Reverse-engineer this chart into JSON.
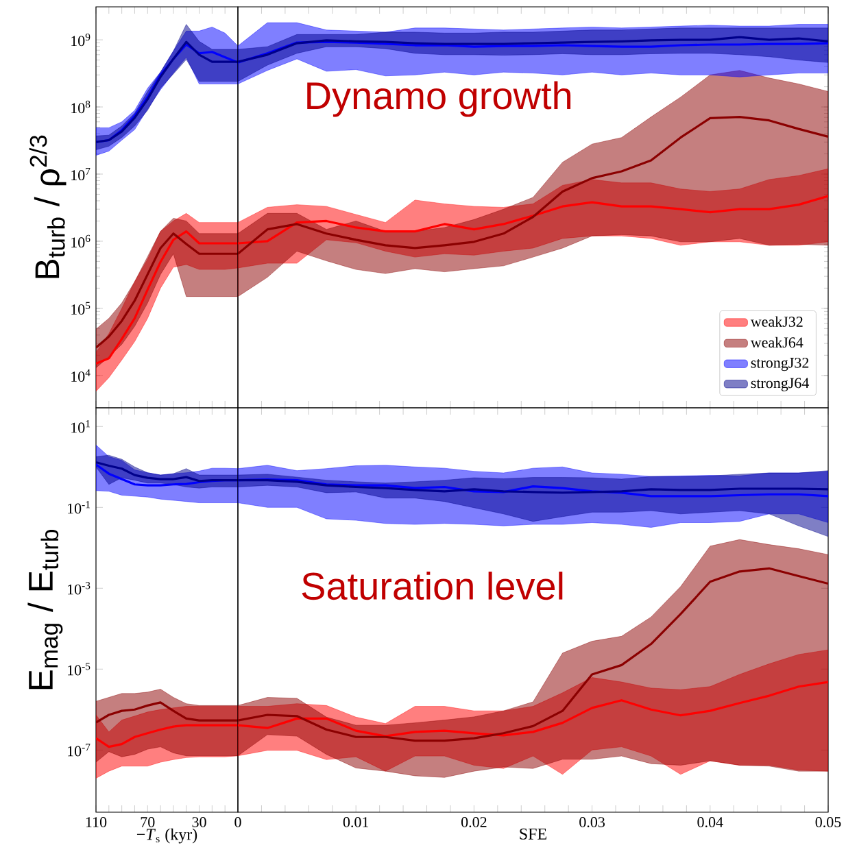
{
  "chart_data": [
    {
      "type": "line",
      "log": true,
      "tick_labels": "y",
      "ylabel": "B$_{turb}$ / ρ$^{2/3}$",
      "xlim": [
        110,
        0
      ],
      "ylim": [
        3300,
        3100000000
      ],
      "xticks": [
        110,
        {
          "value": 100,
          "label": null
        },
        {
          "value": 90,
          "label": null
        },
        {
          "value": 80,
          "label": null
        },
        70,
        {
          "value": 60,
          "label": null
        },
        {
          "value": 50,
          "label": null
        },
        {
          "value": 40,
          "label": null
        },
        30,
        {
          "value": 20,
          "label": null
        },
        {
          "value": 10,
          "label": null
        },
        0
      ],
      "yticks": [
        {
          "value": 10000,
          "label": "10$^{4}$"
        },
        {
          "value": 100000,
          "label": "10$^{5}$"
        },
        {
          "value": 1000000,
          "label": "10$^{6}$"
        },
        {
          "value": 10000000,
          "label": "10$^{7}$"
        },
        {
          "value": 100000000,
          "label": "10$^{8}$"
        },
        {
          "value": 1000000000,
          "label": "10$^{9}$"
        }
      ],
      "x": [
        110,
        100,
        90,
        80,
        70,
        60,
        50,
        40,
        30,
        20,
        10,
        0
      ],
      "series": [
        {
          "color": "#ff0000",
          "values": [
            15000.0,
            18000.0,
            35000.0,
            71000.0,
            190000.0,
            490000.0,
            1050000.0,
            1400000.0,
            930000.0,
            930000.0,
            930000.0,
            930000.0
          ],
          "upper": [
            22000.0,
            42000.0,
            100000.0,
            250000.0,
            540000.0,
            1400000.0,
            2000000.0,
            2600000.0,
            1900000.0,
            1900000.0,
            1900000.0,
            1900000.0
          ],
          "lower": [
            5800.0,
            9300.0,
            17000.0,
            32000.0,
            71000.0,
            200000.0,
            410000.0,
            450000.0,
            380000.0,
            380000.0,
            380000.0,
            400000.0
          ]
        },
        {
          "color": "#8b0000",
          "values": [
            26000.0,
            38000.0,
            65000.0,
            130000.0,
            320000.0,
            790000.0,
            1300000.0,
            910000.0,
            650000.0,
            650000.0,
            650000.0,
            650000.0
          ],
          "upper": [
            49000.0,
            71000.0,
            120000.0,
            250000.0,
            590000.0,
            1400000.0,
            2200000.0,
            2000000.0,
            1300000.0,
            1300000.0,
            1300000.0,
            1300000.0
          ],
          "lower": [
            13000.0,
            19000.0,
            29000.0,
            54000.0,
            120000.0,
            320000.0,
            650000.0,
            150000.0,
            150000.0,
            150000.0,
            150000.0,
            150000.0
          ]
        },
        {
          "color": "#0000ff",
          "values": [
            30000000.0,
            32000000.0,
            45000000.0,
            74000000.0,
            140000000.0,
            300000000.0,
            520000000.0,
            850000000.0,
            630000000.0,
            660000000.0,
            550000000.0,
            460000000.0
          ],
          "upper": [
            49000000.0,
            49000000.0,
            60000000.0,
            89000000.0,
            190000000.0,
            330000000.0,
            680000000.0,
            1350000000.0,
            1350000000.0,
            1550000000.0,
            1260000000.0,
            810000000.0
          ],
          "lower": [
            19000000.0,
            22000000.0,
            32000000.0,
            46000000.0,
            93000000.0,
            180000000.0,
            320000000.0,
            550000000.0,
            220000000.0,
            220000000.0,
            220000000.0,
            220000000.0
          ]
        },
        {
          "color": "#00008b",
          "values": [
            30000000.0,
            32000000.0,
            43000000.0,
            69000000.0,
            130000000.0,
            280000000.0,
            520000000.0,
            930000000.0,
            600000000.0,
            470000000.0,
            470000000.0,
            470000000.0
          ],
          "upper": [
            37000000.0,
            38000000.0,
            52000000.0,
            81000000.0,
            170000000.0,
            330000000.0,
            680000000.0,
            1700000000.0,
            950000000.0,
            720000000.0,
            720000000.0,
            720000000.0
          ],
          "lower": [
            23000000.0,
            26000000.0,
            35000000.0,
            52000000.0,
            89000000.0,
            190000000.0,
            310000000.0,
            510000000.0,
            240000000.0,
            240000000.0,
            240000000.0,
            240000000.0
          ]
        }
      ]
    },
    {
      "type": "line",
      "log": true,
      "tick_labels": false,
      "legend": "bottom right",
      "annotations": [
        "Dynamo growth"
      ],
      "xlim": [
        0,
        0.05
      ],
      "ylim": [
        3300,
        3100000000
      ],
      "xticks": [
        0,
        {
          "value": 0.002,
          "label": null
        },
        {
          "value": 0.004,
          "label": null
        },
        {
          "value": 0.006,
          "label": null
        },
        {
          "value": 0.008,
          "label": null
        },
        0.01,
        {
          "value": 0.012,
          "label": null
        },
        {
          "value": 0.014,
          "label": null
        },
        {
          "value": 0.016,
          "label": null
        },
        {
          "value": 0.018,
          "label": null
        },
        0.02,
        {
          "value": 0.022,
          "label": null
        },
        {
          "value": 0.024,
          "label": null
        },
        {
          "value": 0.026,
          "label": null
        },
        {
          "value": 0.028,
          "label": null
        },
        0.03,
        {
          "value": 0.032,
          "label": null
        },
        {
          "value": 0.034,
          "label": null
        },
        {
          "value": 0.036,
          "label": null
        },
        {
          "value": 0.038,
          "label": null
        },
        0.04,
        {
          "value": 0.042,
          "label": null
        },
        {
          "value": 0.044,
          "label": null
        },
        {
          "value": 0.046,
          "label": null
        },
        {
          "value": 0.048,
          "label": null
        },
        0.05
      ],
      "yticks": [
        {
          "value": 10000,
          "label": null
        },
        {
          "value": 100000,
          "label": null
        },
        {
          "value": 1000000,
          "label": null
        },
        {
          "value": 10000000,
          "label": null
        },
        {
          "value": 100000000,
          "label": null
        },
        {
          "value": 1000000000,
          "label": null
        }
      ],
      "x": [
        0,
        0.0025,
        0.005,
        0.0075,
        0.01,
        0.0125,
        0.015,
        0.0175,
        0.02,
        0.0225,
        0.025,
        0.0275,
        0.03,
        0.0325,
        0.035,
        0.0375,
        0.04,
        0.0425,
        0.045,
        0.0475,
        0.05
      ],
      "series": [
        {
          "name": "weakJ32",
          "color": "#ff0000",
          "values": [
            930000.0,
            1000000.0,
            1900000.0,
            2000000.0,
            1600000.0,
            1400000.0,
            1400000.0,
            1800000.0,
            1500000.0,
            1800000.0,
            2400000.0,
            3300000.0,
            3800000.0,
            3300000.0,
            3300000.0,
            3000000.0,
            2700000.0,
            3000000.0,
            3000000.0,
            3500000.0,
            4700000.0
          ],
          "upper": [
            1900000.0,
            3200000.0,
            3500000.0,
            3300000.0,
            2500000.0,
            1900000.0,
            4100000.0,
            3600000.0,
            3300000.0,
            3200000.0,
            3600000.0,
            6800000.0,
            8300000.0,
            7400000.0,
            7400000.0,
            6000000.0,
            5500000.0,
            6000000.0,
            8300000.0,
            9500000.0,
            12000000.0
          ],
          "lower": [
            400000.0,
            470000.0,
            470000.0,
            1050000.0,
            950000.0,
            710000.0,
            580000.0,
            650000.0,
            620000.0,
            710000.0,
            790000.0,
            1100000.0,
            1200000.0,
            1200000.0,
            1100000.0,
            870000.0,
            980000.0,
            980000.0,
            870000.0,
            870000.0,
            980000.0
          ]
        },
        {
          "name": "weakJ64",
          "color": "#8b0000",
          "values": [
            650000.0,
            1500000.0,
            1800000.0,
            1300000.0,
            1050000.0,
            870000.0,
            790000.0,
            870000.0,
            980000.0,
            1300000.0,
            2300000.0,
            5500000.0,
            8700000.0,
            11000000.0,
            16000000.0,
            35000000.0,
            68000000.0,
            71000000.0,
            63000000.0,
            47000000.0,
            36000000.0
          ],
          "upper": [
            1300000.0,
            2600000.0,
            2600000.0,
            1500000.0,
            2000000.0,
            1400000.0,
            1400000.0,
            1600000.0,
            2100000.0,
            3000000.0,
            4500000.0,
            15000000.0,
            28000000.0,
            35000000.0,
            71000000.0,
            140000000.0,
            300000000.0,
            350000000.0,
            270000000.0,
            220000000.0,
            170000000.0
          ],
          "lower": [
            150000.0,
            290000.0,
            710000.0,
            510000.0,
            380000.0,
            330000.0,
            390000.0,
            350000.0,
            390000.0,
            430000.0,
            580000.0,
            790000.0,
            1200000.0,
            1250000.0,
            1200000.0,
            980000.0,
            980000.0,
            1100000.0,
            870000.0,
            900000.0,
            870000.0
          ]
        },
        {
          "name": "strongJ32",
          "color": "#0000ff",
          "values": [
            460000000.0,
            630000000.0,
            910000000.0,
            930000000.0,
            910000000.0,
            870000000.0,
            830000000.0,
            830000000.0,
            790000000.0,
            810000000.0,
            810000000.0,
            830000000.0,
            810000000.0,
            790000000.0,
            790000000.0,
            830000000.0,
            850000000.0,
            850000000.0,
            870000000.0,
            870000000.0,
            890000000.0
          ],
          "upper": [
            810000000.0,
            1800000000.0,
            1800000000.0,
            1400000000.0,
            1350000000.0,
            1300000000.0,
            1500000000.0,
            1500000000.0,
            1450000000.0,
            1400000000.0,
            1450000000.0,
            1500000000.0,
            1550000000.0,
            1500000000.0,
            1550000000.0,
            1600000000.0,
            1650000000.0,
            1600000000.0,
            1600000000.0,
            1700000000.0,
            1700000000.0
          ],
          "lower": [
            220000000.0,
            350000000.0,
            520000000.0,
            340000000.0,
            360000000.0,
            290000000.0,
            300000000.0,
            330000000.0,
            300000000.0,
            330000000.0,
            320000000.0,
            300000000.0,
            330000000.0,
            300000000.0,
            320000000.0,
            300000000.0,
            300000000.0,
            280000000.0,
            300000000.0,
            320000000.0,
            320000000.0
          ]
        },
        {
          "name": "strongJ64",
          "color": "#00008b",
          "values": [
            470000000.0,
            600000000.0,
            890000000.0,
            980000000.0,
            950000000.0,
            930000000.0,
            890000000.0,
            870000000.0,
            870000000.0,
            870000000.0,
            890000000.0,
            910000000.0,
            930000000.0,
            950000000.0,
            980000000.0,
            1000000000.0,
            1000000000.0,
            1100000000.0,
            1000000000.0,
            1050000000.0,
            950000000.0
          ],
          "upper": [
            720000000.0,
            790000000.0,
            1200000000.0,
            1200000000.0,
            1200000000.0,
            1300000000.0,
            1300000000.0,
            1260000000.0,
            1260000000.0,
            1300000000.0,
            1300000000.0,
            1350000000.0,
            1400000000.0,
            1400000000.0,
            1450000000.0,
            1500000000.0,
            1500000000.0,
            1500000000.0,
            1500000000.0,
            1500000000.0,
            1500000000.0
          ],
          "lower": [
            240000000.0,
            420000000.0,
            630000000.0,
            790000000.0,
            790000000.0,
            740000000.0,
            630000000.0,
            600000000.0,
            600000000.0,
            590000000.0,
            600000000.0,
            620000000.0,
            600000000.0,
            600000000.0,
            620000000.0,
            630000000.0,
            630000000.0,
            600000000.0,
            560000000.0,
            500000000.0,
            460000000.0
          ]
        }
      ]
    },
    {
      "type": "line",
      "log": true,
      "ylabel": "E$_{mag}$ / E$_{turb}$",
      "xlabel": "−*T*$_{s}$ (kyr)",
      "xlim": [
        110,
        0
      ],
      "ylim": [
        2.9e-09,
        29
      ],
      "xticks": [
        110,
        {
          "value": 100,
          "label": null
        },
        {
          "value": 90,
          "label": null
        },
        {
          "value": 80,
          "label": null
        },
        70,
        {
          "value": 60,
          "label": null
        },
        {
          "value": 50,
          "label": null
        },
        {
          "value": 40,
          "label": null
        },
        30,
        {
          "value": 20,
          "label": null
        },
        {
          "value": 10,
          "label": null
        },
        {
          "value": 0,
          "label": null
        }
      ],
      "yticks": [
        {
          "value": 1e-07,
          "label": "10$^{-7}$"
        },
        {
          "value": 1e-05,
          "label": "10$^{-5}$"
        },
        {
          "value": 0.001,
          "label": "10$^{-3}$"
        },
        {
          "value": 0.1,
          "label": "10$^{-1}$"
        },
        {
          "value": 10,
          "label": "10$^{1}$"
        }
      ],
      "x": [
        110,
        100,
        90,
        80,
        70,
        60,
        50,
        40,
        30,
        20,
        10,
        0
      ],
      "series": [
        {
          "color": "#ff0000",
          "values": [
            1.95e-07,
            1.2e-07,
            1.4e-07,
            2.1e-07,
            2.6e-07,
            3.2e-07,
            3.8e-07,
            4.1e-07,
            4.1e-07,
            4.1e-07,
            4.1e-07,
            4.1e-07
          ],
          "upper": [
            7.4e-07,
            2.8e-07,
            5.5e-07,
            6.9e-07,
            8.7e-07,
            1e-06,
            1.1e-06,
            1.2e-06,
            1.2e-06,
            1.2e-06,
            1.2e-06,
            1.2e-06
          ],
          "lower": [
            2e-08,
            3e-08,
            4e-08,
            4e-08,
            4e-08,
            5e-08,
            5.8e-08,
            6.5e-08,
            6.8e-08,
            6.8e-08,
            6.8e-08,
            7.2e-08
          ]
        },
        {
          "color": "#8b0000",
          "values": [
            4.8e-07,
            7.4e-07,
            9.3e-07,
            1e-06,
            1.26e-06,
            1.5e-06,
            9.3e-07,
            6e-07,
            5.4e-07,
            5.4e-07,
            5.4e-07,
            5.4e-07
          ],
          "upper": [
            1.6e-06,
            2e-06,
            2.5e-06,
            2.5e-06,
            2.7e-06,
            3.2e-06,
            2e-06,
            1.4e-06,
            1.26e-06,
            1.26e-06,
            1.26e-06,
            1.26e-06
          ],
          "lower": [
            5e-08,
            9.1e-08,
            6.8e-08,
            7.8e-08,
            1.05e-07,
            1.2e-07,
            8.5e-08,
            7.2e-08,
            7.2e-08,
            7.2e-08,
            7.2e-08,
            7.2e-08
          ]
        },
        {
          "color": "#0000ff",
          "values": [
            1.15,
            0.68,
            0.5,
            0.37,
            0.35,
            0.35,
            0.37,
            0.38,
            0.42,
            0.45,
            0.47,
            0.47
          ],
          "upper": [
            3.5,
            1.8,
            1.45,
            0.85,
            0.72,
            0.63,
            0.68,
            0.72,
            0.79,
            0.93,
            0.93,
            0.91
          ],
          "lower": [
            0.26,
            0.25,
            0.2,
            0.19,
            0.18,
            0.16,
            0.15,
            0.14,
            0.13,
            0.13,
            0.13,
            0.13
          ]
        },
        {
          "color": "#00008b",
          "values": [
            1.3,
            1.07,
            0.91,
            0.63,
            0.54,
            0.5,
            0.5,
            0.56,
            0.45,
            0.47,
            0.47,
            0.47
          ],
          "upper": [
            1.8,
            1.95,
            1.55,
            1.0,
            0.72,
            0.63,
            0.68,
            0.91,
            0.63,
            0.63,
            0.63,
            0.63
          ],
          "lower": [
            1.0,
            0.37,
            0.54,
            0.47,
            0.4,
            0.4,
            0.37,
            0.32,
            0.3,
            0.32,
            0.32,
            0.32
          ]
        }
      ]
    },
    {
      "type": "line",
      "log": true,
      "tick_labels": "x",
      "xlabel": "SFE",
      "annotations": [
        "Saturation level"
      ],
      "xlim": [
        0,
        0.05
      ],
      "ylim": [
        2.9e-09,
        29
      ],
      "xticks": [
        0,
        {
          "value": 0.002,
          "label": null
        },
        {
          "value": 0.004,
          "label": null
        },
        {
          "value": 0.006,
          "label": null
        },
        {
          "value": 0.008,
          "label": null
        },
        0.01,
        {
          "value": 0.012,
          "label": null
        },
        {
          "value": 0.014,
          "label": null
        },
        {
          "value": 0.016,
          "label": null
        },
        {
          "value": 0.018,
          "label": null
        },
        0.02,
        {
          "value": 0.022,
          "label": null
        },
        {
          "value": 0.024,
          "label": null
        },
        {
          "value": 0.026,
          "label": null
        },
        {
          "value": 0.028,
          "label": null
        },
        0.03,
        {
          "value": 0.032,
          "label": null
        },
        {
          "value": 0.034,
          "label": null
        },
        {
          "value": 0.036,
          "label": null
        },
        {
          "value": 0.038,
          "label": null
        },
        0.04,
        {
          "value": 0.042,
          "label": null
        },
        {
          "value": 0.044,
          "label": null
        },
        {
          "value": 0.046,
          "label": null
        },
        {
          "value": 0.048,
          "label": null
        },
        0.05
      ],
      "yticks": [
        {
          "value": 1e-07,
          "label": null
        },
        {
          "value": 1e-05,
          "label": null
        },
        {
          "value": 0.001,
          "label": null
        },
        {
          "value": 0.1,
          "label": null
        },
        {
          "value": 10,
          "label": null
        }
      ],
      "x": [
        0,
        0.0025,
        0.005,
        0.0075,
        0.01,
        0.0125,
        0.015,
        0.0175,
        0.02,
        0.0225,
        0.025,
        0.0275,
        0.03,
        0.0325,
        0.035,
        0.0375,
        0.04,
        0.0425,
        0.045,
        0.0475,
        0.05
      ],
      "series": [
        {
          "color": "#ff0000",
          "values": [
            4.1e-07,
            3.5e-07,
            6e-07,
            6e-07,
            3e-07,
            2.2e-07,
            2.8e-07,
            3e-07,
            2.6e-07,
            2.3e-07,
            2.8e-07,
            4.7e-07,
            1.1e-06,
            1.7e-06,
            1e-06,
            7.2e-07,
            9.3e-07,
            1.45e-06,
            2.2e-06,
            3.7e-06,
            4.8e-06
          ],
          "upper": [
            1.2e-06,
            1.2e-06,
            1.4e-06,
            1.26e-06,
            6.5e-07,
            4.5e-07,
            1.2e-06,
            1.2e-06,
            9.3e-07,
            9.3e-07,
            1.2e-06,
            2.6e-06,
            6.2e-06,
            4.8e-06,
            3.4e-06,
            3.1e-06,
            3.7e-06,
            7.4e-06,
            1.35e-05,
            2.3e-05,
            3e-05
          ],
          "lower": [
            7.2e-08,
            9.8e-08,
            9.8e-08,
            5.8e-08,
            6.8e-08,
            3e-08,
            7.1e-08,
            7.1e-08,
            4.2e-08,
            3.5e-08,
            7.1e-08,
            2.5e-08,
            1e-07,
            1.2e-07,
            7.1e-08,
            2.5e-08,
            5.4e-08,
            4.2e-08,
            4.2e-08,
            3.2e-08,
            3e-08
          ]
        },
        {
          "color": "#8b0000",
          "values": [
            5.4e-07,
            7.4e-07,
            6.9e-07,
            3.2e-07,
            2.1e-07,
            2.1e-07,
            1.7e-07,
            1.7e-07,
            1.95e-07,
            2.6e-07,
            3.9e-07,
            9.3e-07,
            7.4e-06,
            1.26e-05,
            4.2e-05,
            0.00023,
            0.00145,
            0.0026,
            0.0031,
            0.002,
            0.0013
          ],
          "upper": [
            1.26e-06,
            2e-06,
            1.9e-06,
            6.5e-07,
            4.1e-07,
            4.1e-07,
            4.7e-07,
            5.5e-07,
            6.6e-07,
            9.3e-07,
            1.55e-06,
            2.5e-05,
            4.9e-05,
            6.5e-05,
            0.000195,
            0.0011,
            0.011,
            0.016,
            0.012,
            0.0095,
            0.0068
          ],
          "lower": [
            7.2e-08,
            2.4e-07,
            2.2e-07,
            7.8e-08,
            3.6e-08,
            3e-08,
            2.3e-08,
            2.1e-08,
            3e-08,
            3.8e-08,
            3.5e-08,
            5.9e-08,
            5.9e-08,
            7.1e-08,
            4.6e-08,
            4.2e-08,
            5.4e-08,
            4.2e-08,
            4e-08,
            3e-08,
            3e-08
          ]
        },
        {
          "color": "#0000ff",
          "values": [
            0.47,
            0.49,
            0.47,
            0.37,
            0.35,
            0.35,
            0.3,
            0.32,
            0.25,
            0.24,
            0.33,
            0.3,
            0.25,
            0.23,
            0.19,
            0.19,
            0.19,
            0.2,
            0.21,
            0.21,
            0.19
          ],
          "upper": [
            0.91,
            1.1,
            0.81,
            0.91,
            1.07,
            1.1,
            1.0,
            0.93,
            0.78,
            0.71,
            0.93,
            1.0,
            0.71,
            0.66,
            0.58,
            0.6,
            0.62,
            0.6,
            0.71,
            0.71,
            0.78
          ],
          "lower": [
            0.13,
            0.1,
            0.1,
            0.052,
            0.048,
            0.04,
            0.038,
            0.04,
            0.038,
            0.035,
            0.038,
            0.038,
            0.042,
            0.038,
            0.032,
            0.042,
            0.042,
            0.045,
            0.069,
            0.069,
            0.042
          ]
        },
        {
          "color": "#00008b",
          "values": [
            0.47,
            0.47,
            0.43,
            0.35,
            0.32,
            0.3,
            0.27,
            0.25,
            0.28,
            0.25,
            0.24,
            0.23,
            0.24,
            0.25,
            0.28,
            0.27,
            0.27,
            0.29,
            0.29,
            0.29,
            0.28
          ],
          "upper": [
            0.63,
            0.66,
            0.56,
            0.47,
            0.43,
            0.4,
            0.43,
            0.47,
            0.54,
            0.51,
            0.55,
            0.55,
            0.54,
            0.5,
            0.58,
            0.58,
            0.6,
            0.66,
            0.71,
            0.71,
            0.81
          ],
          "lower": [
            0.32,
            0.35,
            0.32,
            0.23,
            0.24,
            0.17,
            0.17,
            0.14,
            0.098,
            0.069,
            0.045,
            0.059,
            0.076,
            0.076,
            0.083,
            0.069,
            0.076,
            0.083,
            0.069,
            0.035,
            0.019
          ]
        }
      ]
    }
  ]
}
